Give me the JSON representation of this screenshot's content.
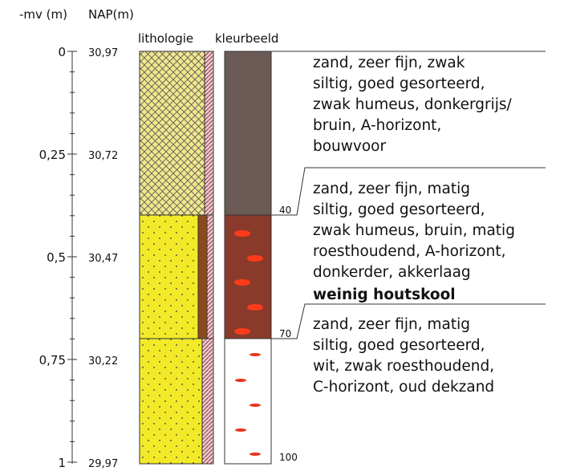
{
  "header": {
    "depth_label": "-mv (m)",
    "nap_label": "NAP(m)",
    "lithology_label": "lithologie",
    "color_label": "kleurbeeld"
  },
  "axis": {
    "depth_ticks": [
      "0",
      "0,25",
      "0,5",
      "0,75",
      "1"
    ],
    "nap_ticks": [
      "30,97",
      "30,72",
      "30,47",
      "30,22",
      "29,97"
    ]
  },
  "layers": [
    {
      "lines": [
        "zand, zeer fijn, zwak",
        "siltig, goed gesorteerd,",
        "zwak humeus, donkergrijs/",
        "bruin, A-horizont,",
        "bouwvoor"
      ],
      "bottom_label": "40"
    },
    {
      "lines": [
        "zand, zeer fijn, matig",
        "siltig, goed gesorteerd,",
        "zwak humeus, bruin, matig",
        "roesthoudend, A-horizont,",
        "donkerder, akkerlaag"
      ],
      "note": "weinig houtskool",
      "bottom_label": "70"
    },
    {
      "lines": [
        "zand, zeer fijn, matig",
        "siltig, goed gesorteerd,",
        "wit, zwak roesthoudend,",
        "C-horizont, oud dekzand"
      ],
      "bottom_label": "100"
    }
  ]
}
